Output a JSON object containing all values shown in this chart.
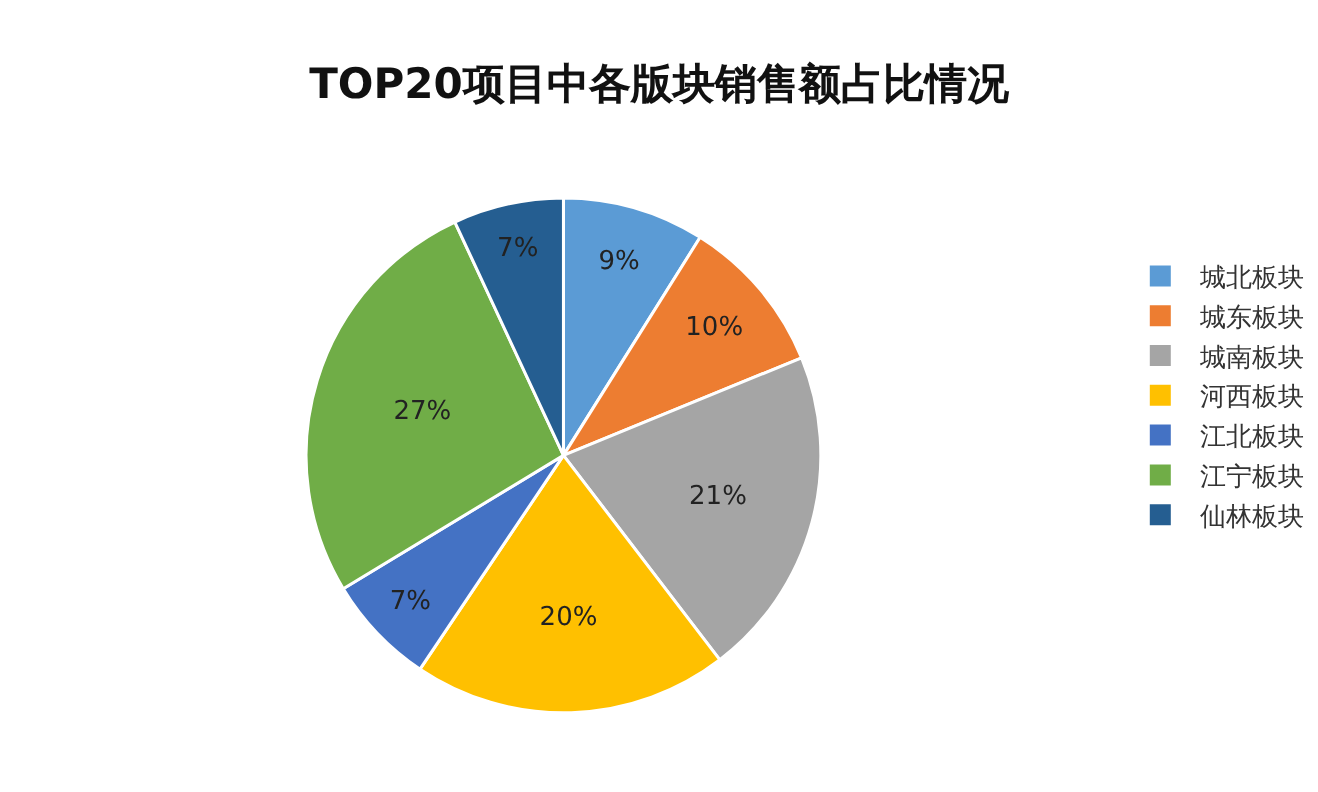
{
  "chart_data": {
    "type": "pie",
    "title": "TOP20项目中各版块销售额占比情况",
    "categories": [
      "城北板块",
      "城东板块",
      "城南板块",
      "河西板块",
      "江北板块",
      "江宁板块",
      "仙林板块"
    ],
    "values": [
      9,
      10,
      21,
      20,
      7,
      27,
      7
    ],
    "value_labels": [
      "9%",
      "10%",
      "21%",
      "20%",
      "7%",
      "27%",
      "7%"
    ],
    "colors": [
      "#5b9bd5",
      "#ed7d31",
      "#a5a5a5",
      "#ffc000",
      "#4472c4",
      "#70ad47",
      "#255e91"
    ],
    "legend": "right"
  }
}
